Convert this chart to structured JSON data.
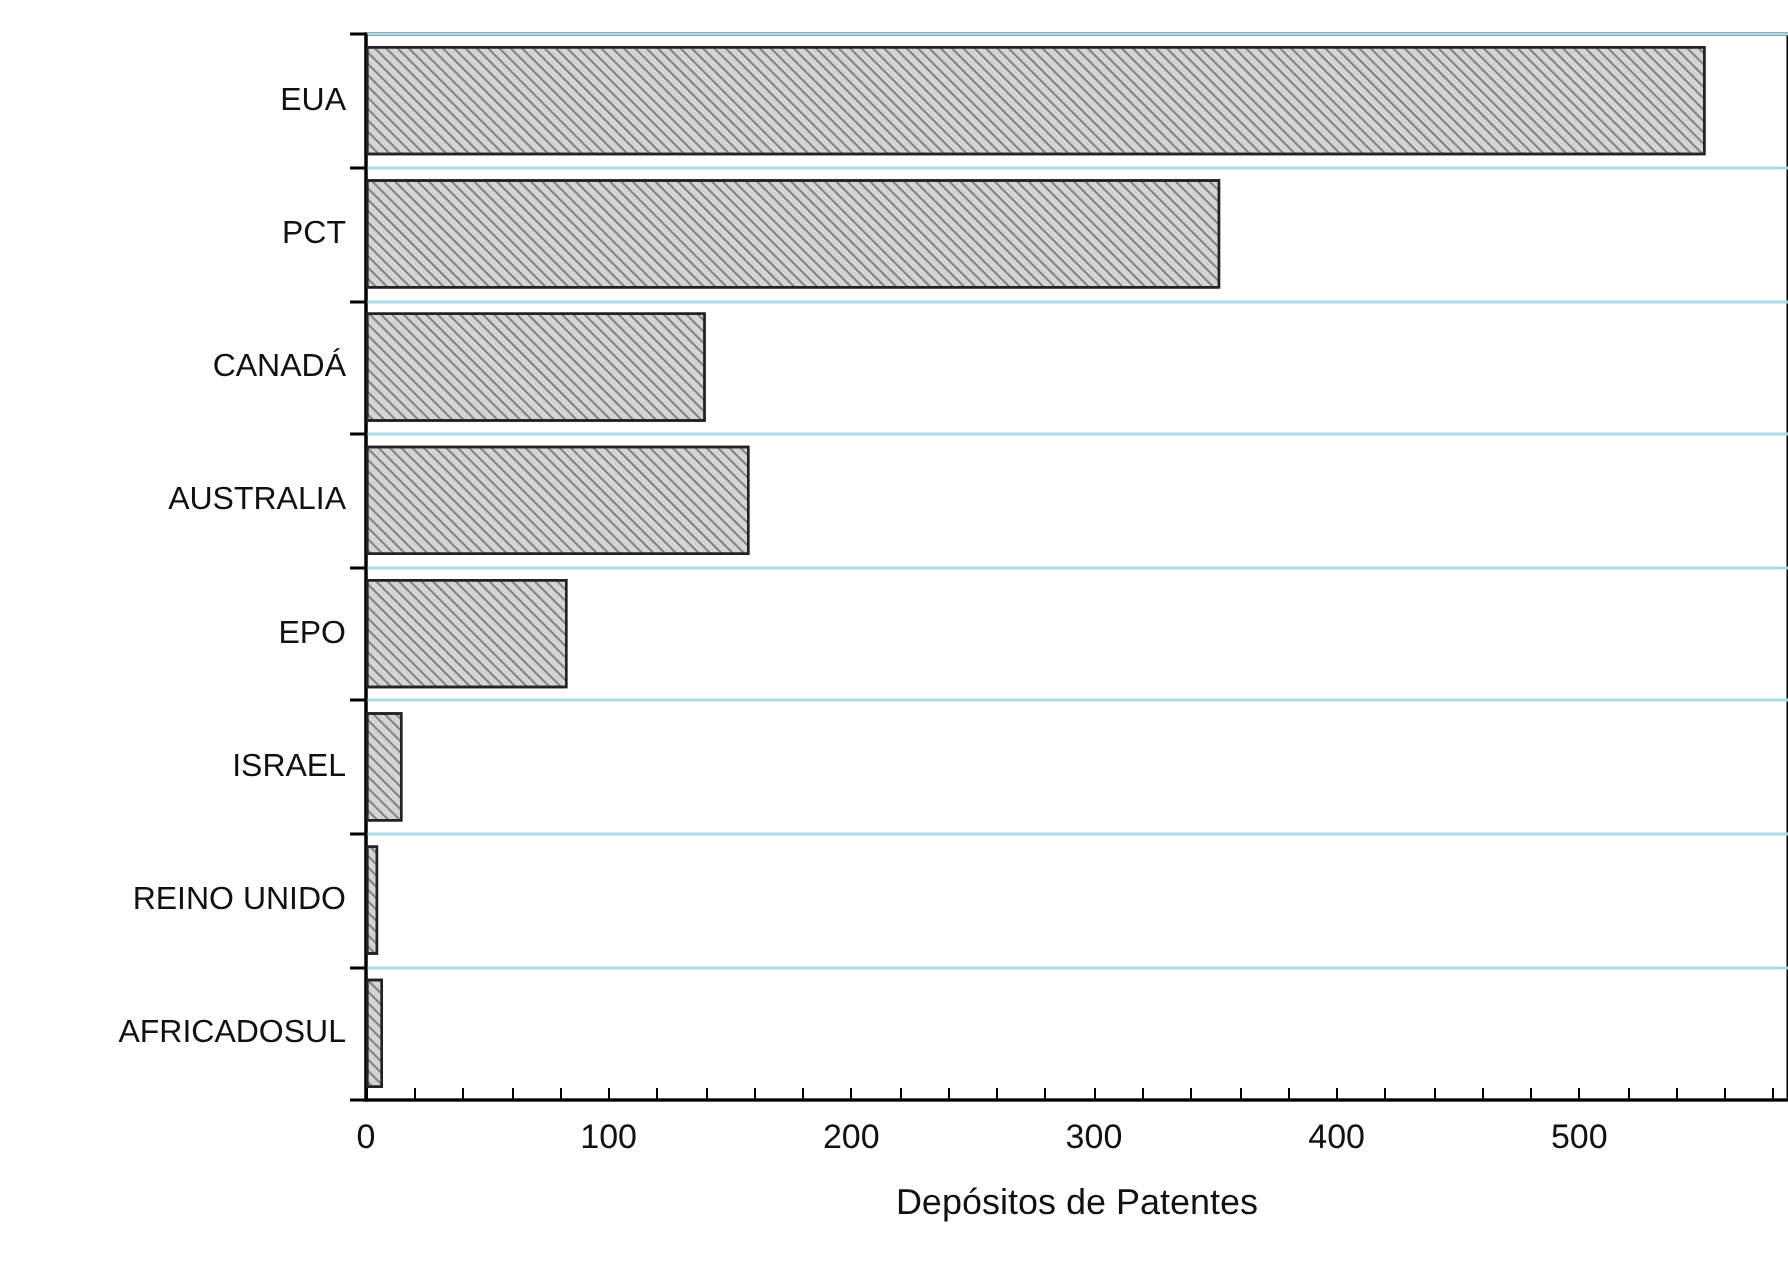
{
  "chart_data": {
    "type": "bar",
    "orientation": "horizontal",
    "xlabel": "Depósitos de Patentes",
    "categories": [
      "EUA",
      "PCT",
      "CANADÁ",
      "AUSTRALIA",
      "EPO",
      "ISRAEL",
      "REINO UNIDO",
      "AFRICADOSUL"
    ],
    "values": [
      552,
      352,
      140,
      158,
      83,
      15,
      5,
      7
    ],
    "color": "#d4d4d4",
    "xlim": [
      0,
      586
    ],
    "xticks": [
      0,
      {
        "value": 20,
        "label": null
      },
      {
        "value": 40,
        "label": null
      },
      {
        "value": 60,
        "label": null
      },
      {
        "value": 80,
        "label": null
      },
      100,
      {
        "value": 120,
        "label": null
      },
      {
        "value": 140,
        "label": null
      },
      {
        "value": 160,
        "label": null
      },
      {
        "value": 180,
        "label": null
      },
      200,
      {
        "value": 220,
        "label": null
      },
      {
        "value": 240,
        "label": null
      },
      {
        "value": 260,
        "label": null
      },
      {
        "value": 280,
        "label": null
      },
      300,
      {
        "value": 320,
        "label": null
      },
      {
        "value": 340,
        "label": null
      },
      {
        "value": 360,
        "label": null
      },
      {
        "value": 380,
        "label": null
      },
      400,
      {
        "value": 420,
        "label": null
      },
      {
        "value": 440,
        "label": null
      },
      {
        "value": 460,
        "label": null
      },
      {
        "value": 480,
        "label": null
      },
      500,
      {
        "value": 520,
        "label": null
      },
      {
        "value": 540,
        "label": null
      },
      {
        "value": 560,
        "label": null
      },
      {
        "value": 580,
        "label": null
      }
    ],
    "grid": "y"
  }
}
